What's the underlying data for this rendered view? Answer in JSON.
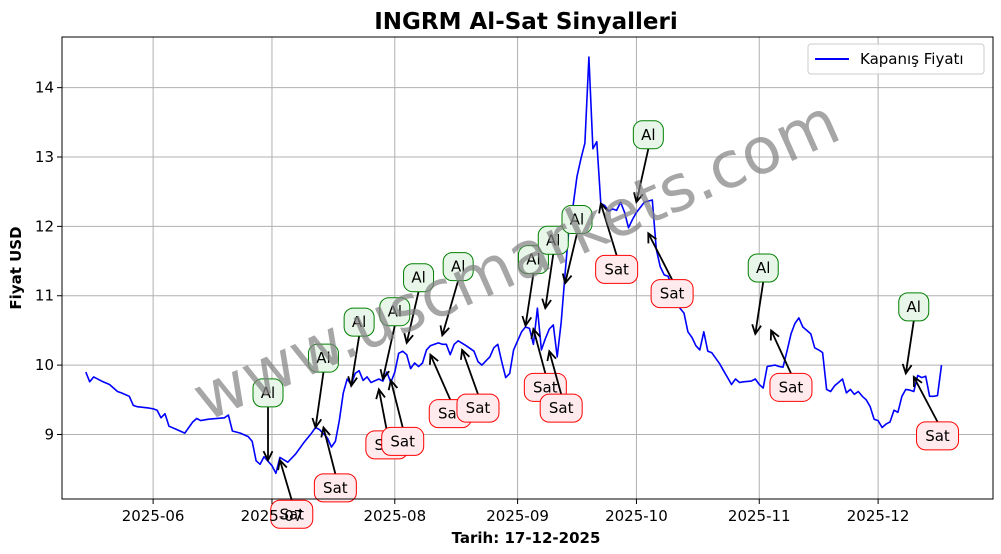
{
  "chart_data": {
    "type": "line",
    "title": "INGRM Al-Sat Sinyalleri",
    "xlabel": "Tarih: 17-12-2025",
    "ylabel": "Fiyat USD",
    "watermark": "www.uscmarkets.com",
    "grid": true,
    "legend": {
      "position": "top-right",
      "entries": [
        "Kapanış Fiyatı"
      ]
    },
    "x_range": [
      "2025-05-09",
      "2025-12-30"
    ],
    "ylim": [
      8.07,
      14.73
    ],
    "x_ticks": [
      "2025-06-01",
      "2025-07-01",
      "2025-08-01",
      "2025-09-01",
      "2025-10-01",
      "2025-11-01",
      "2025-12-01"
    ],
    "x_tick_labels": [
      "2025-06",
      "2025-07",
      "2025-08",
      "2025-09",
      "2025-10",
      "2025-11",
      "2025-12"
    ],
    "y_ticks": [
      9,
      10,
      11,
      12,
      13,
      14
    ],
    "series": [
      {
        "name": "Kapanış Fiyatı",
        "color": "#0000ff",
        "points": [
          [
            "2025-05-15",
            9.9
          ],
          [
            "2025-05-16",
            9.76
          ],
          [
            "2025-05-17",
            9.83
          ],
          [
            "2025-05-19",
            9.77
          ],
          [
            "2025-05-21",
            9.72
          ],
          [
            "2025-05-23",
            9.62
          ],
          [
            "2025-05-24",
            9.6
          ],
          [
            "2025-05-26",
            9.55
          ],
          [
            "2025-05-27",
            9.42
          ],
          [
            "2025-05-28",
            9.4
          ],
          [
            "2025-05-31",
            9.38
          ],
          [
            "2025-06-01",
            9.37
          ],
          [
            "2025-06-02",
            9.35
          ],
          [
            "2025-06-03",
            9.24
          ],
          [
            "2025-06-04",
            9.3
          ],
          [
            "2025-06-05",
            9.12
          ],
          [
            "2025-06-07",
            9.07
          ],
          [
            "2025-06-09",
            9.02
          ],
          [
            "2025-06-11",
            9.18
          ],
          [
            "2025-06-12",
            9.23
          ],
          [
            "2025-06-13",
            9.2
          ],
          [
            "2025-06-15",
            9.22
          ],
          [
            "2025-06-19",
            9.24
          ],
          [
            "2025-06-20",
            9.28
          ],
          [
            "2025-06-21",
            9.05
          ],
          [
            "2025-06-23",
            9.02
          ],
          [
            "2025-06-25",
            8.97
          ],
          [
            "2025-06-26",
            8.9
          ],
          [
            "2025-06-27",
            8.62
          ],
          [
            "2025-06-28",
            8.57
          ],
          [
            "2025-06-29",
            8.68
          ],
          [
            "2025-07-01",
            8.55
          ],
          [
            "2025-07-02",
            8.44
          ],
          [
            "2025-07-03",
            8.67
          ],
          [
            "2025-07-05",
            8.6
          ],
          [
            "2025-07-07",
            8.72
          ],
          [
            "2025-07-09",
            8.88
          ],
          [
            "2025-07-10",
            8.95
          ],
          [
            "2025-07-11",
            9.02
          ],
          [
            "2025-07-12",
            9.1
          ],
          [
            "2025-07-13",
            9.07
          ],
          [
            "2025-07-15",
            8.95
          ],
          [
            "2025-07-16",
            8.82
          ],
          [
            "2025-07-17",
            8.9
          ],
          [
            "2025-07-18",
            9.2
          ],
          [
            "2025-07-19",
            9.6
          ],
          [
            "2025-07-20",
            9.8
          ],
          [
            "2025-07-21",
            9.72
          ],
          [
            "2025-07-22",
            9.88
          ],
          [
            "2025-07-23",
            9.92
          ],
          [
            "2025-07-24",
            9.78
          ],
          [
            "2025-07-25",
            9.83
          ],
          [
            "2025-07-26",
            9.75
          ],
          [
            "2025-07-28",
            9.8
          ],
          [
            "2025-07-29",
            9.77
          ],
          [
            "2025-07-30",
            9.9
          ],
          [
            "2025-07-31",
            9.75
          ],
          [
            "2025-08-01",
            9.9
          ],
          [
            "2025-08-02",
            10.17
          ],
          [
            "2025-08-03",
            10.2
          ],
          [
            "2025-08-04",
            10.15
          ],
          [
            "2025-08-05",
            9.95
          ],
          [
            "2025-08-06",
            10.03
          ],
          [
            "2025-08-07",
            9.98
          ],
          [
            "2025-08-08",
            10.03
          ],
          [
            "2025-08-09",
            10.22
          ],
          [
            "2025-08-10",
            10.28
          ],
          [
            "2025-08-11",
            10.3
          ],
          [
            "2025-08-12",
            10.32
          ],
          [
            "2025-08-13",
            10.3
          ],
          [
            "2025-08-14",
            10.3
          ],
          [
            "2025-08-15",
            10.15
          ],
          [
            "2025-08-16",
            10.3
          ],
          [
            "2025-08-17",
            10.35
          ],
          [
            "2025-08-19",
            10.28
          ],
          [
            "2025-08-21",
            10.2
          ],
          [
            "2025-08-22",
            10.05
          ],
          [
            "2025-08-23",
            10.0
          ],
          [
            "2025-08-25",
            10.12
          ],
          [
            "2025-08-26",
            10.25
          ],
          [
            "2025-08-27",
            10.3
          ],
          [
            "2025-08-28",
            10.05
          ],
          [
            "2025-08-29",
            9.82
          ],
          [
            "2025-08-30",
            9.88
          ],
          [
            "2025-08-31",
            10.22
          ],
          [
            "2025-09-02",
            10.48
          ],
          [
            "2025-09-03",
            10.55
          ],
          [
            "2025-09-04",
            10.53
          ],
          [
            "2025-09-05",
            10.3
          ],
          [
            "2025-09-06",
            10.82
          ],
          [
            "2025-09-07",
            10.22
          ],
          [
            "2025-09-08",
            10.38
          ],
          [
            "2025-09-09",
            10.52
          ],
          [
            "2025-09-10",
            10.58
          ],
          [
            "2025-09-11",
            10.12
          ],
          [
            "2025-09-12",
            10.62
          ],
          [
            "2025-09-13",
            11.32
          ],
          [
            "2025-09-14",
            12.0
          ],
          [
            "2025-09-15",
            12.3
          ],
          [
            "2025-09-16",
            12.72
          ],
          [
            "2025-09-17",
            12.98
          ],
          [
            "2025-09-18",
            13.2
          ],
          [
            "2025-09-19",
            14.44
          ],
          [
            "2025-09-20",
            13.12
          ],
          [
            "2025-09-21",
            13.22
          ],
          [
            "2025-09-22",
            12.33
          ],
          [
            "2025-09-23",
            12.3
          ],
          [
            "2025-09-24",
            12.22
          ],
          [
            "2025-09-25",
            12.25
          ],
          [
            "2025-09-26",
            12.23
          ],
          [
            "2025-09-27",
            12.35
          ],
          [
            "2025-09-28",
            12.2
          ],
          [
            "2025-09-29",
            11.98
          ],
          [
            "2025-09-30",
            12.1
          ],
          [
            "2025-10-01",
            12.2
          ],
          [
            "2025-10-03",
            12.35
          ],
          [
            "2025-10-05",
            12.38
          ],
          [
            "2025-10-06",
            11.67
          ],
          [
            "2025-10-07",
            11.42
          ],
          [
            "2025-10-08",
            11.3
          ],
          [
            "2025-10-09",
            11.28
          ],
          [
            "2025-10-10",
            11.12
          ],
          [
            "2025-10-11",
            10.95
          ],
          [
            "2025-10-12",
            10.82
          ],
          [
            "2025-10-13",
            10.75
          ],
          [
            "2025-10-14",
            10.48
          ],
          [
            "2025-10-15",
            10.4
          ],
          [
            "2025-10-16",
            10.28
          ],
          [
            "2025-10-17",
            10.22
          ],
          [
            "2025-10-18",
            10.48
          ],
          [
            "2025-10-19",
            10.2
          ],
          [
            "2025-10-20",
            10.18
          ],
          [
            "2025-10-21",
            10.1
          ],
          [
            "2025-10-22",
            10.02
          ],
          [
            "2025-10-23",
            9.92
          ],
          [
            "2025-10-24",
            9.82
          ],
          [
            "2025-10-25",
            9.72
          ],
          [
            "2025-10-26",
            9.8
          ],
          [
            "2025-10-27",
            9.75
          ],
          [
            "2025-10-28",
            9.76
          ],
          [
            "2025-10-30",
            9.77
          ],
          [
            "2025-10-31",
            9.8
          ],
          [
            "2025-11-01",
            9.72
          ],
          [
            "2025-11-02",
            9.67
          ],
          [
            "2025-11-03",
            9.98
          ],
          [
            "2025-11-05",
            10.0
          ],
          [
            "2025-11-06",
            9.98
          ],
          [
            "2025-11-07",
            9.97
          ],
          [
            "2025-11-08",
            10.2
          ],
          [
            "2025-11-09",
            10.45
          ],
          [
            "2025-11-10",
            10.6
          ],
          [
            "2025-11-11",
            10.68
          ],
          [
            "2025-11-12",
            10.55
          ],
          [
            "2025-11-13",
            10.5
          ],
          [
            "2025-11-14",
            10.45
          ],
          [
            "2025-11-15",
            10.25
          ],
          [
            "2025-11-16",
            10.22
          ],
          [
            "2025-11-17",
            10.18
          ],
          [
            "2025-11-18",
            9.65
          ],
          [
            "2025-11-19",
            9.62
          ],
          [
            "2025-11-20",
            9.7
          ],
          [
            "2025-11-21",
            9.75
          ],
          [
            "2025-11-22",
            9.8
          ],
          [
            "2025-11-23",
            9.6
          ],
          [
            "2025-11-24",
            9.65
          ],
          [
            "2025-11-25",
            9.58
          ],
          [
            "2025-11-26",
            9.62
          ],
          [
            "2025-11-27",
            9.55
          ],
          [
            "2025-11-28",
            9.5
          ],
          [
            "2025-11-29",
            9.4
          ],
          [
            "2025-11-30",
            9.22
          ],
          [
            "2025-12-01",
            9.2
          ],
          [
            "2025-12-02",
            9.1
          ],
          [
            "2025-12-03",
            9.15
          ],
          [
            "2025-12-04",
            9.18
          ],
          [
            "2025-12-05",
            9.35
          ],
          [
            "2025-12-06",
            9.32
          ],
          [
            "2025-12-07",
            9.55
          ],
          [
            "2025-12-08",
            9.65
          ],
          [
            "2025-12-09",
            9.64
          ],
          [
            "2025-12-10",
            9.62
          ],
          [
            "2025-12-11",
            9.85
          ],
          [
            "2025-12-12",
            9.82
          ],
          [
            "2025-12-13",
            9.84
          ],
          [
            "2025-12-14",
            9.55
          ],
          [
            "2025-12-15",
            9.55
          ],
          [
            "2025-12-16",
            9.56
          ],
          [
            "2025-12-17",
            10.0
          ]
        ]
      }
    ],
    "annotations": [
      {
        "text": "Al",
        "type": "buy",
        "x": "2025-06-30",
        "y": 8.63,
        "text_x": "2025-06-30",
        "text_y": 9.6
      },
      {
        "text": "Sat",
        "type": "sell",
        "x": "2025-07-03",
        "y": 8.63,
        "text_x": "2025-07-06",
        "text_y": 7.85
      },
      {
        "text": "Al",
        "type": "buy",
        "x": "2025-07-12",
        "y": 9.1,
        "text_x": "2025-07-14",
        "text_y": 10.1
      },
      {
        "text": "Sat",
        "type": "sell",
        "x": "2025-07-14",
        "y": 9.1,
        "text_x": "2025-07-17",
        "text_y": 8.23
      },
      {
        "text": "Al",
        "type": "buy",
        "x": "2025-07-21",
        "y": 9.7,
        "text_x": "2025-07-23",
        "text_y": 10.62
      },
      {
        "text": "Sat",
        "type": "sell",
        "x": "2025-07-28",
        "y": 9.65,
        "text_x": "2025-07-30",
        "text_y": 8.85
      },
      {
        "text": "Al",
        "type": "buy",
        "x": "2025-07-29",
        "y": 9.8,
        "text_x": "2025-08-01",
        "text_y": 10.77
      },
      {
        "text": "Sat",
        "type": "sell",
        "x": "2025-07-31",
        "y": 9.78,
        "text_x": "2025-08-03",
        "text_y": 8.9
      },
      {
        "text": "Al",
        "type": "buy",
        "x": "2025-08-04",
        "y": 10.32,
        "text_x": "2025-08-07",
        "text_y": 11.26
      },
      {
        "text": "Sat",
        "type": "sell",
        "x": "2025-08-10",
        "y": 10.15,
        "text_x": "2025-08-15",
        "text_y": 9.3
      },
      {
        "text": "Al",
        "type": "buy",
        "x": "2025-08-13",
        "y": 10.43,
        "text_x": "2025-08-17",
        "text_y": 11.42
      },
      {
        "text": "Sat",
        "type": "sell",
        "x": "2025-08-18",
        "y": 10.22,
        "text_x": "2025-08-22",
        "text_y": 9.38
      },
      {
        "text": "Al",
        "type": "buy",
        "x": "2025-09-03",
        "y": 10.57,
        "text_x": "2025-09-05",
        "text_y": 11.52
      },
      {
        "text": "Sat",
        "type": "sell",
        "x": "2025-09-05",
        "y": 10.52,
        "text_x": "2025-09-08",
        "text_y": 9.68
      },
      {
        "text": "Al",
        "type": "buy",
        "x": "2025-09-08",
        "y": 10.82,
        "text_x": "2025-09-10",
        "text_y": 11.8
      },
      {
        "text": "Sat",
        "type": "sell",
        "x": "2025-09-09",
        "y": 10.2,
        "text_x": "2025-09-12",
        "text_y": 9.38
      },
      {
        "text": "Al",
        "type": "buy",
        "x": "2025-09-13",
        "y": 11.18,
        "text_x": "2025-09-16",
        "text_y": 12.1
      },
      {
        "text": "Sat",
        "type": "sell",
        "x": "2025-09-22",
        "y": 12.33,
        "text_x": "2025-09-26",
        "text_y": 11.38
      },
      {
        "text": "Al",
        "type": "buy",
        "x": "2025-10-01",
        "y": 12.35,
        "text_x": "2025-10-04",
        "text_y": 13.32
      },
      {
        "text": "Sat",
        "type": "sell",
        "x": "2025-10-04",
        "y": 11.9,
        "text_x": "2025-10-10",
        "text_y": 11.03
      },
      {
        "text": "Al",
        "type": "buy",
        "x": "2025-10-31",
        "y": 10.45,
        "text_x": "2025-11-02",
        "text_y": 11.4
      },
      {
        "text": "Sat",
        "type": "sell",
        "x": "2025-11-04",
        "y": 10.5,
        "text_x": "2025-11-09",
        "text_y": 9.68
      },
      {
        "text": "Al",
        "type": "buy",
        "x": "2025-12-08",
        "y": 9.88,
        "text_x": "2025-12-10",
        "text_y": 10.84
      },
      {
        "text": "Sat",
        "type": "sell",
        "x": "2025-12-10",
        "y": 9.83,
        "text_x": "2025-12-16",
        "text_y": 8.98
      }
    ]
  }
}
